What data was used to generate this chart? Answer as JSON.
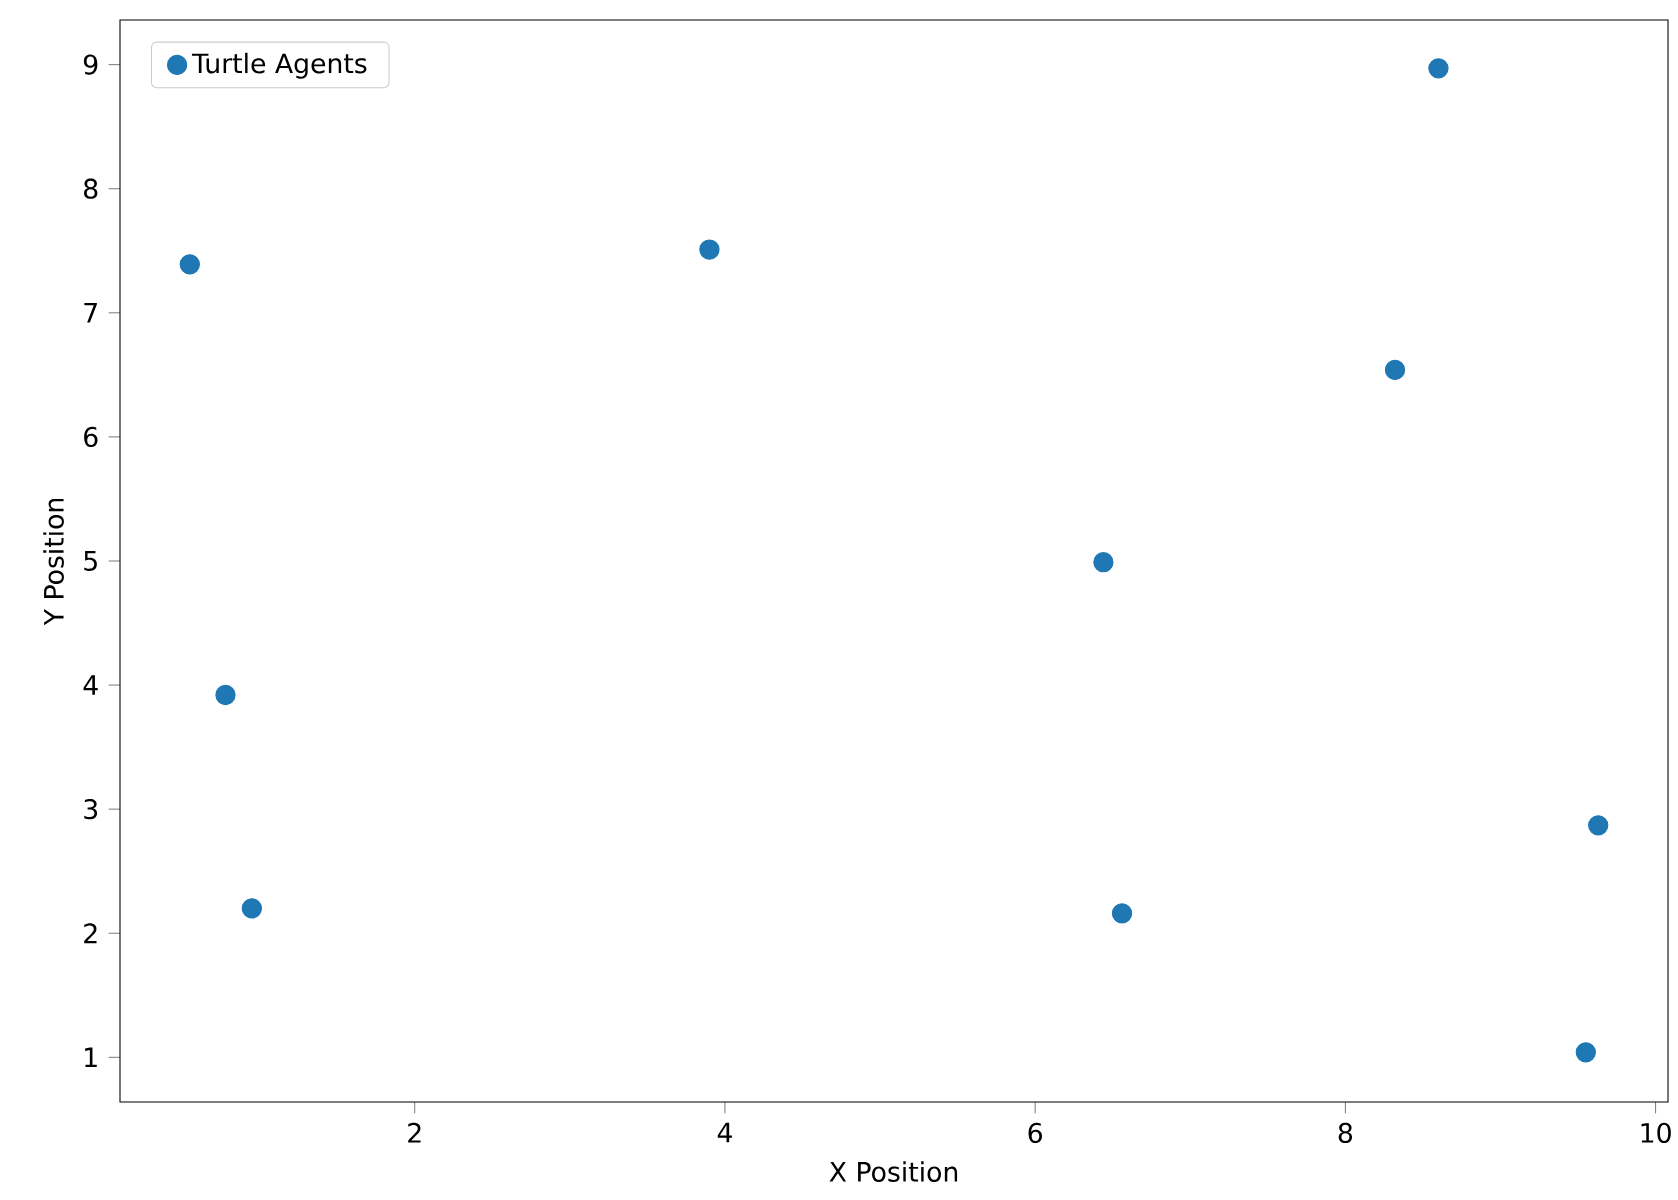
{
  "chart_data": {
    "type": "scatter",
    "xlabel": "X Position",
    "ylabel": "Y Position",
    "xlim": [
      0.1,
      10.08
    ],
    "ylim": [
      0.64,
      9.36
    ],
    "xticks": [
      2,
      4,
      6,
      8,
      10
    ],
    "yticks": [
      1,
      2,
      3,
      4,
      5,
      6,
      7,
      8,
      9
    ],
    "marker": "circle",
    "legend": "top left",
    "series": [
      {
        "name": "Turtle Agents",
        "color": "#1f77b4",
        "x": [
          0.55,
          0.78,
          0.95,
          3.9,
          6.44,
          6.56,
          8.32,
          8.6,
          9.63,
          9.55
        ],
        "values": [
          7.39,
          3.92,
          2.2,
          7.51,
          4.99,
          2.16,
          6.54,
          8.97,
          2.87,
          1.04
        ]
      }
    ]
  }
}
